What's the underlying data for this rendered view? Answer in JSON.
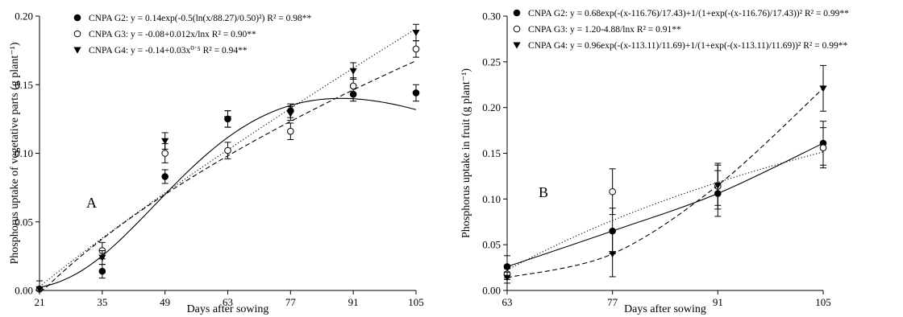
{
  "chart_data": [
    {
      "type": "scatter",
      "panel_label": "A",
      "xlabel": "Days after sowing",
      "ylabel": "Phosphorus uptake of vegetative parts (g plant⁻¹)",
      "xticks": [
        21,
        35,
        49,
        63,
        77,
        91,
        105
      ],
      "yticks": [
        "0.00",
        "0.05",
        "0.10",
        "0.15",
        "0.20"
      ],
      "xlim": [
        21,
        105
      ],
      "ylim": [
        0,
        0.2
      ],
      "legend_position": "top-left",
      "series": [
        {
          "name": "CNPA G2",
          "marker": "filled-circle",
          "line_style": "solid",
          "equation": "y = 0.14exp(-0.5(ln(x/88.27)/0.50)²) R² = 0.98**",
          "fit": {
            "model": "lognormal",
            "a": 0.14,
            "x0": 88.27,
            "b": 0.5
          },
          "x": [
            21,
            35,
            49,
            63,
            77,
            91,
            105
          ],
          "y": [
            0.001,
            0.014,
            0.083,
            0.125,
            0.131,
            0.143,
            0.144
          ],
          "err": [
            0.001,
            0.005,
            0.005,
            0.006,
            0.005,
            0.005,
            0.006
          ]
        },
        {
          "name": "CNPA G3",
          "marker": "open-circle",
          "line_style": "dotted",
          "equation": "y = -0.08+0.012x/lnx R² = 0.90**",
          "fit": {
            "model": "x_over_lnx",
            "a": -0.08,
            "b": 0.012
          },
          "x": [
            21,
            35,
            49,
            63,
            77,
            91,
            105
          ],
          "y": [
            0.001,
            0.029,
            0.1,
            0.102,
            0.116,
            0.149,
            0.176
          ],
          "err": [
            0.001,
            0.006,
            0.007,
            0.006,
            0.006,
            0.006,
            0.006
          ]
        },
        {
          "name": "CNPA G4",
          "marker": "filled-triangle-down",
          "line_style": "dashed",
          "equation": "y = -0.14+0.03x⁰˙⁵ R² = 0.94**",
          "fit": {
            "model": "sqrt",
            "a": -0.14,
            "b": 0.03
          },
          "x": [
            21,
            35,
            49,
            63,
            77,
            91,
            105
          ],
          "y": [
            0.001,
            0.024,
            0.109,
            0.125,
            0.129,
            0.16,
            0.188
          ],
          "err": [
            0.006,
            0.005,
            0.006,
            0.006,
            0.005,
            0.006,
            0.006
          ]
        }
      ]
    },
    {
      "type": "scatter",
      "panel_label": "B",
      "xlabel": "Days after sowing",
      "ylabel": "Phosphorus uptake in fruit  (g plant⁻¹)",
      "xticks": [
        63,
        77,
        91,
        105
      ],
      "yticks": [
        "0.00",
        "0.05",
        "0.10",
        "0.15",
        "0.20",
        "0.25",
        "0.30"
      ],
      "xlim": [
        63,
        105
      ],
      "ylim": [
        0,
        0.3
      ],
      "legend_position": "top-left",
      "series": [
        {
          "name": "CNPA G2",
          "marker": "filled-circle",
          "line_style": "solid",
          "equation": "y = 0.68exp(-(x-116.76)/17.43)+1/(1+exp(-(x-116.76)/17.43))² R² = 0.99**",
          "fit": {
            "model": "points"
          },
          "x": [
            63,
            77,
            91,
            105
          ],
          "y": [
            0.026,
            0.065,
            0.106,
            0.161
          ],
          "err": [
            0.012,
            0.025,
            0.025,
            0.024
          ]
        },
        {
          "name": "CNPA G3",
          "marker": "open-circle",
          "line_style": "dotted",
          "equation": "y = 1.20-4.88/lnx R² = 0.91**",
          "fit": {
            "model": "a_minus_b_over_lnx",
            "a": 1.2,
            "b": 4.88
          },
          "x": [
            63,
            77,
            91,
            105
          ],
          "y": [
            0.018,
            0.108,
            0.114,
            0.156
          ],
          "err": [
            0.006,
            0.025,
            0.025,
            0.022
          ]
        },
        {
          "name": "CNPA G4",
          "marker": "filled-triangle-down",
          "line_style": "dashed",
          "equation": "y = 0.96exp(-(x-113.11)/11.69)+1/(1+exp(-(x-113.11)/11.69))² R² = 0.99**",
          "fit": {
            "model": "points"
          },
          "x": [
            63,
            77,
            91,
            105
          ],
          "y": [
            0.014,
            0.04,
            0.115,
            0.221
          ],
          "err": [
            0.006,
            0.025,
            0.022,
            0.025
          ]
        }
      ]
    }
  ]
}
